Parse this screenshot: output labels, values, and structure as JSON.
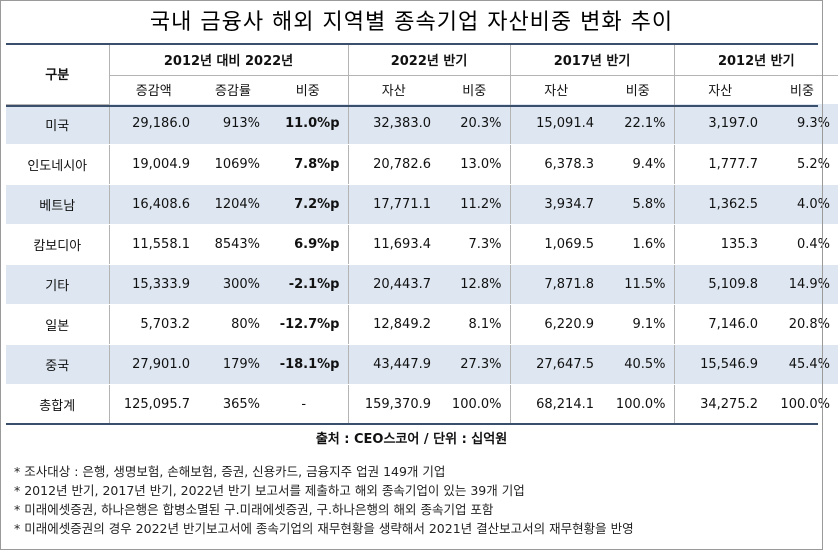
{
  "title": "국내 금융사 해외 지역별 종속기업 자산비중 변화 추이",
  "header": {
    "gubun": "구분",
    "groups": [
      "2012년 대비 2022년",
      "2022년 반기",
      "2017년 반기",
      "2012년 반기"
    ],
    "subcols": [
      "증감액",
      "증감률",
      "비중",
      "자산",
      "비중",
      "자산",
      "비중",
      "자산",
      "비중"
    ]
  },
  "rows": [
    {
      "name": "미국",
      "cells": [
        "29,186.0",
        "913%",
        "11.0%p",
        "32,383.0",
        "20.3%",
        "15,091.4",
        "22.1%",
        "3,197.0",
        "9.3%"
      ]
    },
    {
      "name": "인도네시아",
      "cells": [
        "19,004.9",
        "1069%",
        "7.8%p",
        "20,782.6",
        "13.0%",
        "6,378.3",
        "9.4%",
        "1,777.7",
        "5.2%"
      ]
    },
    {
      "name": "베트남",
      "cells": [
        "16,408.6",
        "1204%",
        "7.2%p",
        "17,771.1",
        "11.2%",
        "3,934.7",
        "5.8%",
        "1,362.5",
        "4.0%"
      ]
    },
    {
      "name": "캄보디아",
      "cells": [
        "11,558.1",
        "8543%",
        "6.9%p",
        "11,693.4",
        "7.3%",
        "1,069.5",
        "1.6%",
        "135.3",
        "0.4%"
      ]
    },
    {
      "name": "기타",
      "cells": [
        "15,333.9",
        "300%",
        "-2.1%p",
        "20,443.7",
        "12.8%",
        "7,871.8",
        "11.5%",
        "5,109.8",
        "14.9%"
      ]
    },
    {
      "name": "일본",
      "cells": [
        "5,703.2",
        "80%",
        "-12.7%p",
        "12,849.2",
        "8.1%",
        "6,220.9",
        "9.1%",
        "7,146.0",
        "20.8%"
      ]
    },
    {
      "name": "중국",
      "cells": [
        "27,901.0",
        "179%",
        "-18.1%p",
        "43,447.9",
        "27.3%",
        "27,647.5",
        "40.5%",
        "15,546.9",
        "45.4%"
      ]
    },
    {
      "name": "총합계",
      "cells": [
        "125,095.7",
        "365%",
        "-",
        "159,370.9",
        "100.0%",
        "68,214.1",
        "100.0%",
        "34,275.2",
        "100.0%"
      ]
    }
  ],
  "source": "출처 : CEO스코어 / 단위 : 십억원",
  "notes": [
    "* 조사대상 : 은행, 생명보험, 손해보험, 증권, 신용카드, 금융지주 업권 149개 기업",
    "* 2012년 반기, 2017년 반기, 2022년 반기 보고서를 제출하고 해외 종속기업이 있는 39개 기업",
    "* 미래에셋증권, 하나은행은 합병소멸된 구.미래에셋증권, 구.하나은행의 해외 종속기업 포함",
    "* 미래에셋증권의 경우 2022년 반기보고서에 종속기업의 재무현황을 생략해서 2021년 결산보고서의 재무현황을 반영"
  ]
}
